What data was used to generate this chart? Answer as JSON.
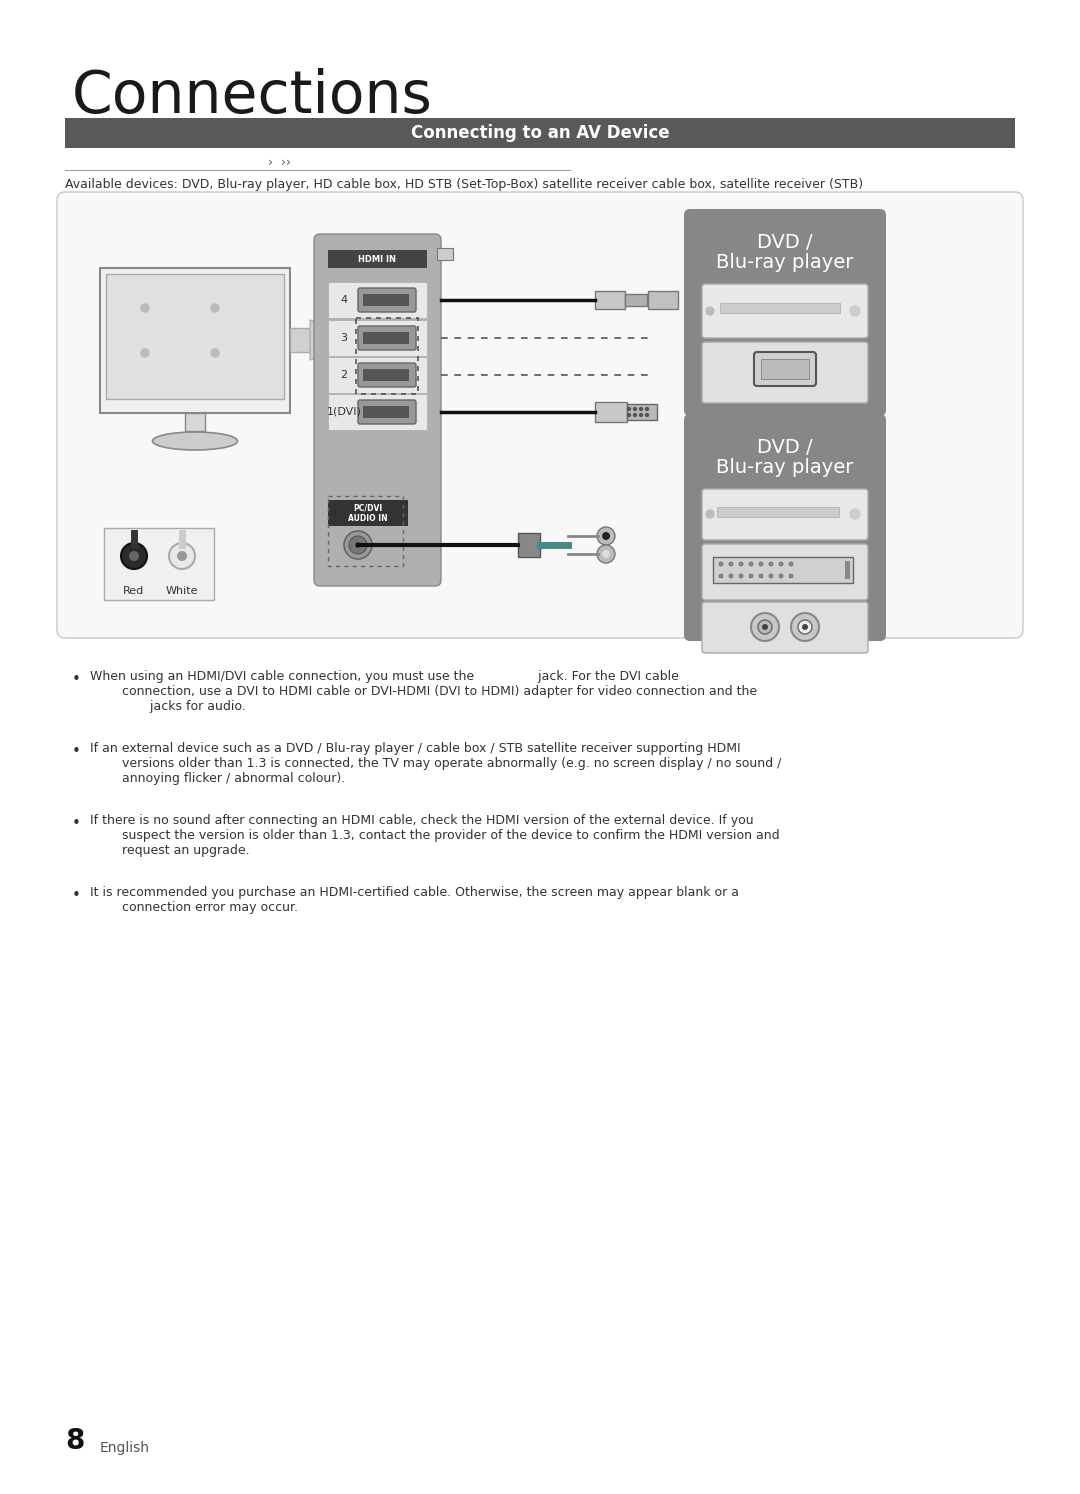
{
  "page_bg": "#ffffff",
  "title": "Connections",
  "section_bar_color": "#595959",
  "section_title": "Connecting to an AV Device",
  "section_title_color": "#ffffff",
  "available_devices_text": "Available devices: DVD, Blu-ray player, HD cable box, HD STB (Set-Top-Box) satellite receiver cable box, satellite receiver (STB)",
  "diagram_box_bg": "#f8f8f8",
  "diagram_box_border": "#cccccc",
  "dvd_box_bg": "#888888",
  "dvd_label": "DVD /\nBlu-ray player",
  "bullet_points": [
    "When using an HDMI/DVI cable connection, you must use the                jack. For the DVI cable\n        connection, use a DVI to HDMI cable or DVI-HDMI (DVI to HDMI) adapter for video connection and the\n               jacks for audio.",
    "If an external device such as a DVD / Blu-ray player / cable box / STB satellite receiver supporting HDMI\n        versions older than 1.3 is connected, the TV may operate abnormally (e.g. no screen display / no sound /\n        annoying flicker / abnormal colour).",
    "If there is no sound after connecting an HDMI cable, check the HDMI version of the external device. If you\n        suspect the version is older than 1.3, contact the provider of the device to confirm the HDMI version and\n        request an upgrade.",
    "It is recommended you purchase an HDMI-certified cable. Otherwise, the screen may appear blank or a\n        connection error may occur."
  ],
  "page_number": "8",
  "page_number_label": "English",
  "hdmi_port_labels": [
    "4",
    "3",
    "2",
    "1(DVI)"
  ],
  "pc_dvi_label": "PC/DVI\nAUDIO IN",
  "red_white_labels": [
    "Red",
    "White"
  ],
  "arrow_markers_text": "›  ››"
}
